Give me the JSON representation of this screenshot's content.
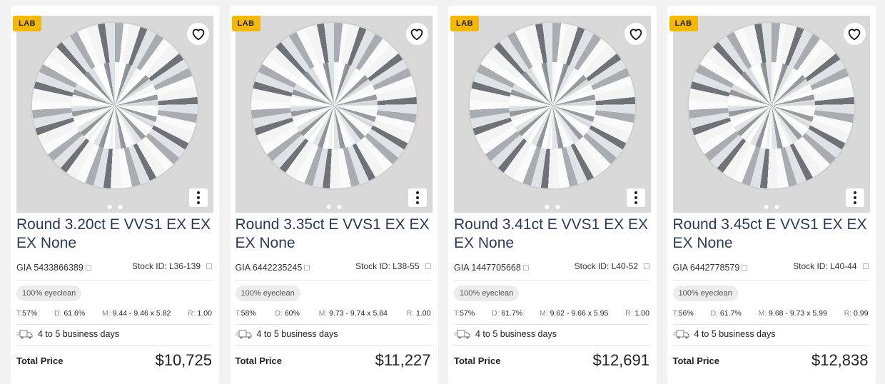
{
  "cards": [
    {
      "badge": "LAB",
      "title": "Round 3.20ct E VVS1 EX EX EX None",
      "gia": "GIA 5433866389",
      "stock": "Stock ID: L36-139",
      "eyeclean": "100% eyeclean",
      "t": "57%",
      "d": "61.6%",
      "m": "9.44 - 9.46 x 5.82",
      "r": "1.00",
      "shipping": "4 to 5 business days",
      "price_label": "Total Price",
      "price": "$10,725"
    },
    {
      "badge": "LAB",
      "title": "Round 3.35ct E VVS1 EX EX EX None",
      "gia": "GIA 6442235245",
      "stock": "Stock ID: L38-55",
      "eyeclean": "100% eyeclean",
      "t": "58%",
      "d": "60%",
      "m": "9.73 - 9.74 x 5.84",
      "r": "1.00",
      "shipping": "4 to 5 business days",
      "price_label": "Total Price",
      "price": "$11,227"
    },
    {
      "badge": "LAB",
      "title": "Round 3.41ct E VVS1 EX EX EX None",
      "gia": "GIA 1447705668",
      "stock": "Stock ID: L40-52",
      "eyeclean": "100% eyeclean",
      "t": "57%",
      "d": "61.7%",
      "m": "9.62 - 9.66 x 5.95",
      "r": "1.00",
      "shipping": "4 to 5 business days",
      "price_label": "Total Price",
      "price": "$12,691"
    },
    {
      "badge": "LAB",
      "title": "Round 3.45ct E VVS1 EX EX EX None",
      "gia": "GIA 6442778579",
      "stock": "Stock ID: L40-44",
      "eyeclean": "100% eyeclean",
      "t": "56%",
      "d": "61.7%",
      "m": "9.68 - 9.73 x 5.99",
      "r": "0.99",
      "shipping": "4 to 5 business days",
      "price_label": "Total Price",
      "price": "$12,838"
    }
  ],
  "labels": {
    "t": "T:",
    "d": "D:",
    "m": "M:",
    "r": "R:"
  },
  "colors": {
    "badge": "#f5b800",
    "title": "#2b3a55"
  }
}
